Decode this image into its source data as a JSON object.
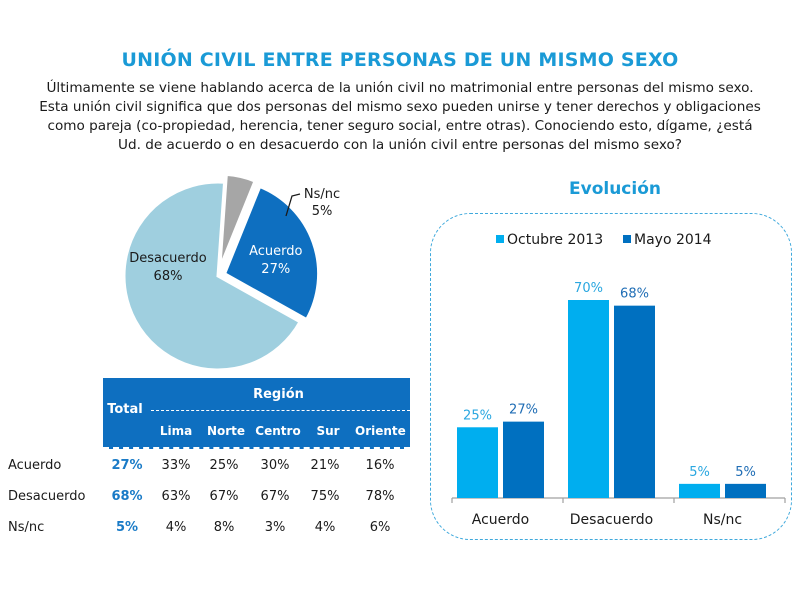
{
  "title": "UNIÓN CIVIL ENTRE PERSONAS DE UN MISMO SEXO",
  "question_lines": [
    "Últimamente se viene hablando acerca de la unión civil no matrimonial entre personas del mismo sexo.",
    "Esta unión civil significa que dos personas del mismo sexo pueden unirse y tener derechos y obligaciones",
    "como pareja (co-propiedad, herencia, tener seguro social, entre otras). Conociendo esto, dígame, ¿está",
    "Ud. de acuerdo o en desacuerdo con la unión civil entre personas del mismo sexo?"
  ],
  "colors": {
    "title": "#1a9ad6",
    "pie_desacuerdo": "#9fcfdf",
    "pie_acuerdo": "#0e6fc0",
    "pie_nsnc": "#a6a6a6",
    "october": "#00aeef",
    "may": "#0070c0",
    "table_header": "#0e6fc0",
    "total_text": "#1a7bc7"
  },
  "table": {
    "total_label": "Total",
    "region_label": "Región",
    "regions": [
      "Lima",
      "Norte",
      "Centro",
      "Sur",
      "Oriente"
    ],
    "rows": [
      {
        "label": "Acuerdo",
        "total": "27%",
        "values": [
          "33%",
          "25%",
          "30%",
          "21%",
          "16%"
        ]
      },
      {
        "label": "Desacuerdo",
        "total": "68%",
        "values": [
          "63%",
          "67%",
          "67%",
          "75%",
          "78%"
        ]
      },
      {
        "label": "Ns/nc",
        "total": "5%",
        "values": [
          "4%",
          "8%",
          "3%",
          "4%",
          "6%"
        ]
      }
    ]
  },
  "chart_data": [
    {
      "type": "pie",
      "title": "",
      "slices": [
        {
          "label": "Acuerdo",
          "value": 27,
          "display": "27%"
        },
        {
          "label": "Desacuerdo",
          "value": 68,
          "display": "68%"
        },
        {
          "label": "Ns/nc",
          "value": 5,
          "display": "5%"
        }
      ]
    },
    {
      "type": "bar",
      "title": "Evolución",
      "categories": [
        "Acuerdo",
        "Desacuerdo",
        "Ns/nc"
      ],
      "series": [
        {
          "name": "Octubre 2013",
          "values": [
            25,
            70,
            5
          ],
          "labels": [
            "25%",
            "70%",
            "5%"
          ]
        },
        {
          "name": "Mayo 2014",
          "values": [
            27,
            68,
            5
          ],
          "labels": [
            "27%",
            "68%",
            "5%"
          ]
        }
      ],
      "xlabel": "",
      "ylabel": "",
      "ylim": [
        0,
        70
      ],
      "grid": false,
      "legend": "top"
    }
  ]
}
